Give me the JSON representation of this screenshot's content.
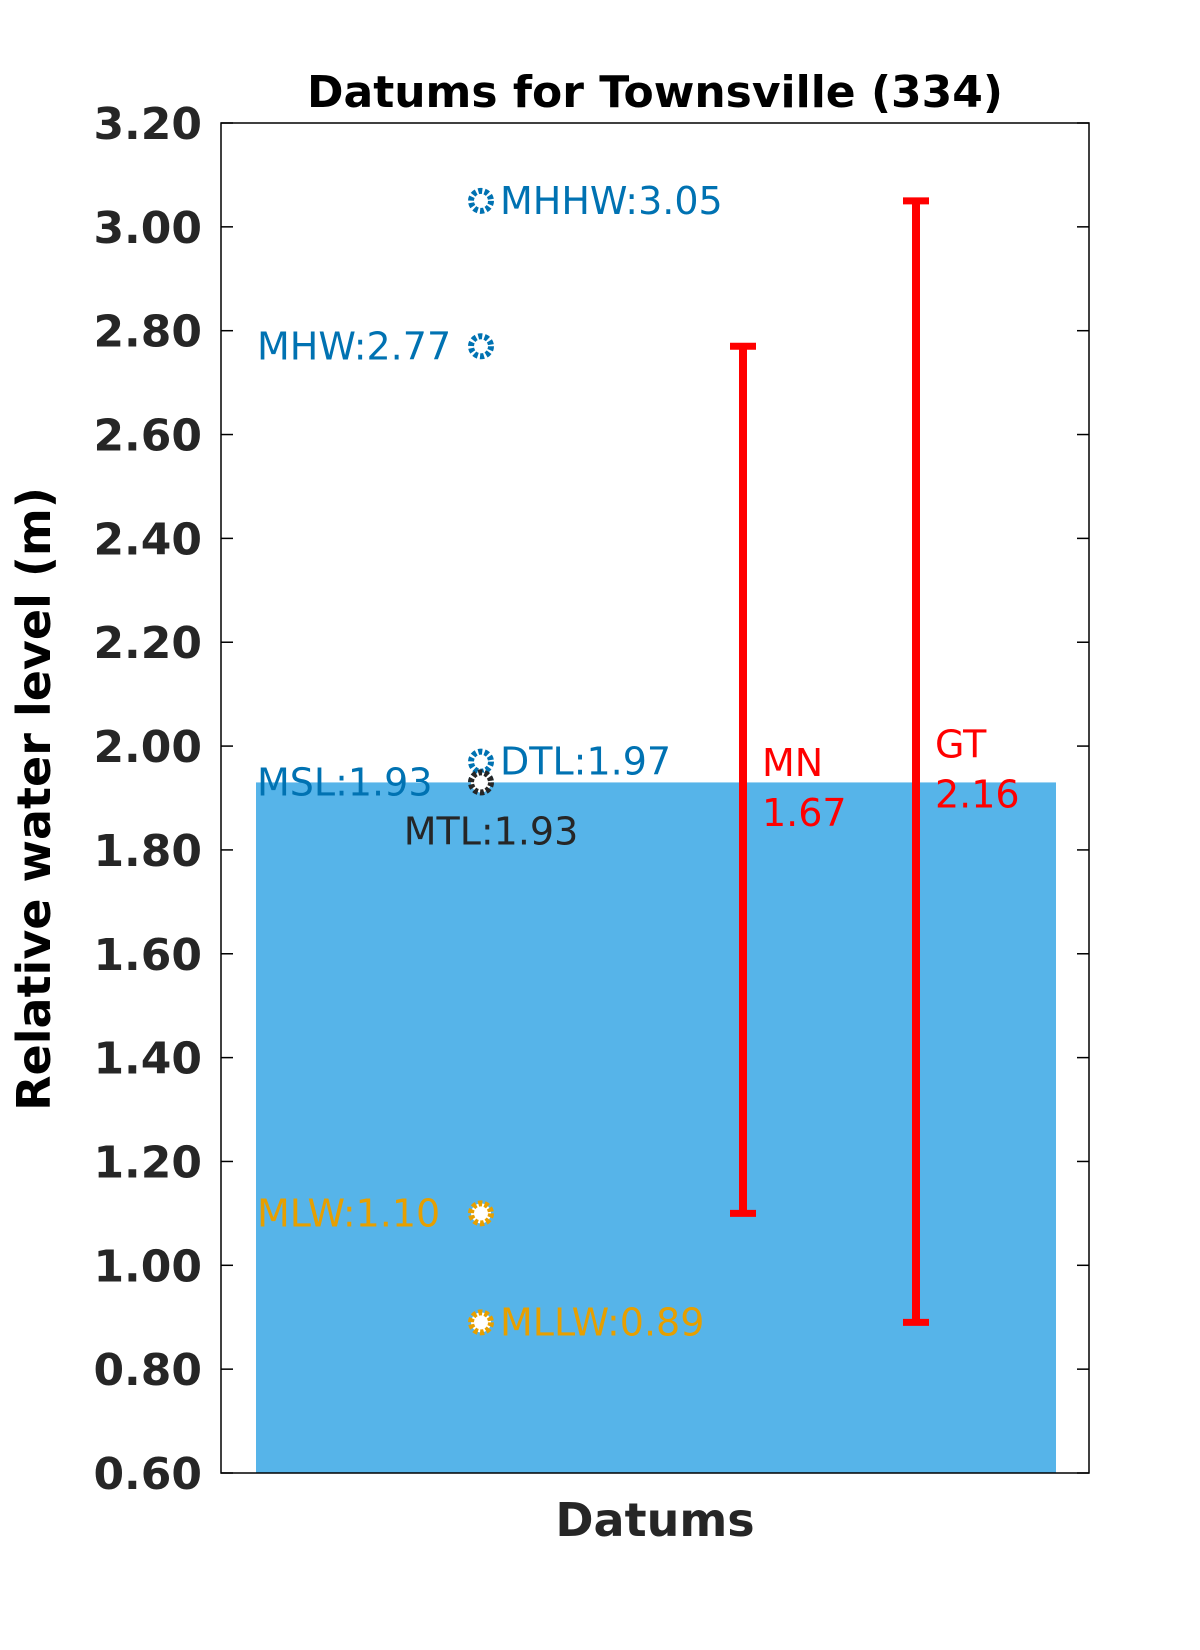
{
  "chart_data": {
    "type": "bar",
    "title": "Datums for Townsville (334)",
    "xlabel": "Datums",
    "ylabel": "Relative water level (m)",
    "ylim": [
      0.6,
      3.2
    ],
    "yticks": [
      0.6,
      0.8,
      1.0,
      1.2,
      1.4,
      1.6,
      1.8,
      2.0,
      2.2,
      2.4,
      2.6,
      2.8,
      3.0,
      3.2
    ],
    "ytick_labels": [
      "0.60",
      "0.80",
      "1.00",
      "1.20",
      "1.40",
      "1.60",
      "1.80",
      "2.00",
      "2.20",
      "2.40",
      "2.60",
      "2.80",
      "3.00",
      "3.20"
    ],
    "grid": false,
    "bar": {
      "value": 1.93,
      "color": "#56b4e9"
    },
    "datums": [
      {
        "name": "MHHW",
        "value": 3.05,
        "label": "MHHW:3.05",
        "color": "#0072b2",
        "label_side": "right"
      },
      {
        "name": "MHW",
        "value": 2.77,
        "label": "MHW:2.77",
        "color": "#0072b2",
        "label_side": "left"
      },
      {
        "name": "DTL",
        "value": 1.97,
        "label": "DTL:1.97",
        "color": "#0072b2",
        "label_side": "right"
      },
      {
        "name": "MSL",
        "value": 1.93,
        "label": "MSL:1.93",
        "color": "#0072b2",
        "label_side": "left"
      },
      {
        "name": "MTL",
        "value": 1.93,
        "label": "MTL:1.93",
        "color": "#262626",
        "label_side": "below"
      },
      {
        "name": "MLW",
        "value": 1.1,
        "label": "MLW:1.10",
        "color": "#e69f00",
        "label_side": "left"
      },
      {
        "name": "MLLW",
        "value": 0.89,
        "label": "MLLW:0.89",
        "color": "#e69f00",
        "label_side": "right"
      }
    ],
    "ranges": [
      {
        "name": "MN",
        "low": 1.1,
        "high": 2.77,
        "label_line1": "MN",
        "label_line2": "1.67",
        "color": "#ff0000"
      },
      {
        "name": "GT",
        "low": 0.89,
        "high": 3.05,
        "label_line1": "GT",
        "label_line2": "2.16",
        "color": "#ff0000"
      }
    ]
  }
}
